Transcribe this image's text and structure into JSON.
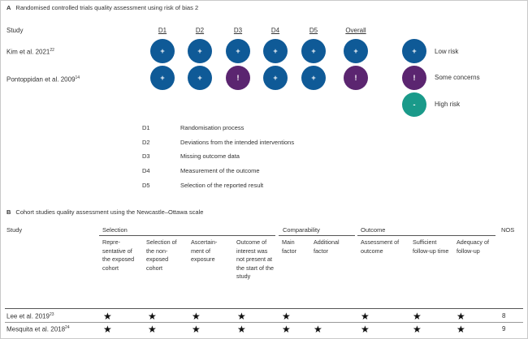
{
  "panel_a": {
    "letter": "A",
    "title": "Randomised controlled trials quality assessment using risk of bias 2",
    "study_header": "Study",
    "domains": [
      "D1",
      "D2",
      "D3",
      "D4",
      "D5",
      "Overall"
    ],
    "studies": [
      {
        "name": "Kim et al. 2021",
        "ref": "22",
        "marks": [
          "+",
          "+",
          "+",
          "+",
          "+",
          "+"
        ]
      },
      {
        "name": "Pontoppidan et al. 2009",
        "ref": "14",
        "marks": [
          "+",
          "+",
          "!",
          "+",
          "+",
          "!"
        ]
      }
    ],
    "legend": [
      {
        "symbol": "+",
        "label": "Low risk",
        "color": "#0f5a97"
      },
      {
        "symbol": "!",
        "label": "Some concerns",
        "color": "#5b2570"
      },
      {
        "symbol": "-",
        "label": "High risk",
        "color": "#1a9a8a"
      }
    ],
    "definitions": [
      {
        "code": "D1",
        "text": "Randomisation process"
      },
      {
        "code": "D2",
        "text": "Deviations from the intended interventions"
      },
      {
        "code": "D3",
        "text": "Missing outcome data"
      },
      {
        "code": "D4",
        "text": "Measurement of the outcome"
      },
      {
        "code": "D5",
        "text": "Selection of the reported result"
      }
    ]
  },
  "panel_b": {
    "letter": "B",
    "title": "Cohort studies quality assessment using the Newcastle–Ottawa scale",
    "study_header": "Study",
    "groups": {
      "selection": "Selection",
      "comparability": "Comparability",
      "outcome": "Outcome",
      "nos": "NOS"
    },
    "subheaders": [
      "Repre-sentative of the exposed cohort",
      "Selection of the non-exposed cohort",
      "Ascertain-ment of exposure",
      "Outcome of interest was not present at the start of the study",
      "Main factor",
      "Additional factor",
      "Assessment of outcome",
      "Sufficient follow-up time",
      "Adequacy of follow-up"
    ],
    "star_symbol": "★",
    "studies": [
      {
        "name": "Lee et al. 2019",
        "ref": "23",
        "stars": [
          1,
          1,
          1,
          1,
          1,
          0,
          1,
          1,
          1
        ],
        "nos": "8"
      },
      {
        "name": "Mesquita et al. 2018",
        "ref": "24",
        "stars": [
          1,
          1,
          1,
          1,
          1,
          1,
          1,
          1,
          1
        ],
        "nos": "9"
      }
    ]
  }
}
